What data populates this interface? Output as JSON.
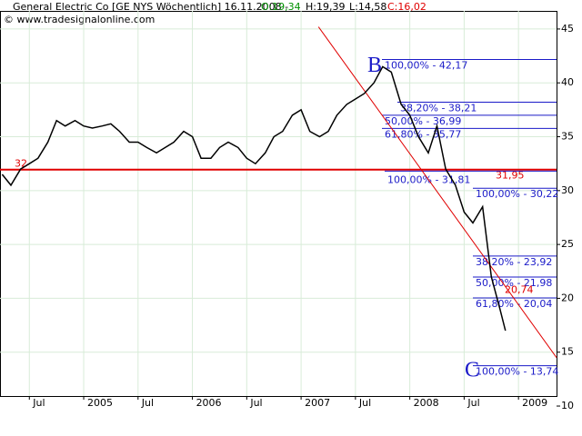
{
  "chart_data": {
    "type": "line",
    "header": {
      "title": "General Electric Co [GE NYS  Wöchentlich] 16.11.2008 -",
      "open": "O:19,34",
      "high": "H:19,39",
      "low": "L:14,58",
      "close": "C:16,02",
      "copyright": "© www.tradesignalonline.com"
    },
    "xlim": [
      2004.23,
      2009.35
    ],
    "xticks": [
      {
        "value": 2004.5,
        "label": "Jul"
      },
      {
        "value": 2005,
        "label": "2005"
      },
      {
        "value": 2005.5,
        "label": "Jul"
      },
      {
        "value": 2006,
        "label": "2006"
      },
      {
        "value": 2006.5,
        "label": "Jul"
      },
      {
        "value": 2007,
        "label": "2007"
      },
      {
        "value": 2007.5,
        "label": "Jul"
      },
      {
        "value": 2008,
        "label": "2008"
      },
      {
        "value": 2008.5,
        "label": "Jul"
      },
      {
        "value": 2009,
        "label": "2009"
      }
    ],
    "ylim": [
      10.93,
      46.68
    ],
    "yticks": [
      10,
      15,
      20,
      25,
      30,
      35,
      40,
      45
    ],
    "grid": true,
    "series": [
      {
        "color": "#000000",
        "x": [
          2004.25,
          2004.33,
          2004.42,
          2004.5,
          2004.58,
          2004.67,
          2004.75,
          2004.83,
          2004.92,
          2005.0,
          2005.08,
          2005.17,
          2005.25,
          2005.33,
          2005.42,
          2005.5,
          2005.58,
          2005.67,
          2005.75,
          2005.83,
          2005.92,
          2006.0,
          2006.08,
          2006.17,
          2006.25,
          2006.33,
          2006.42,
          2006.5,
          2006.58,
          2006.67,
          2006.75,
          2006.83,
          2006.92,
          2007.0,
          2007.08,
          2007.17,
          2007.25,
          2007.33,
          2007.42,
          2007.5,
          2007.58,
          2007.67,
          2007.75,
          2007.83,
          2007.92,
          2008.0,
          2008.08,
          2008.17,
          2008.25,
          2008.33,
          2008.42,
          2008.5,
          2008.58,
          2008.67,
          2008.75,
          2008.83,
          2008.88
        ],
        "values": [
          31.5,
          30.5,
          32,
          32.5,
          33,
          34.5,
          36.5,
          36,
          36.5,
          36,
          35.8,
          36,
          36.2,
          35.5,
          34.5,
          34.5,
          34,
          33.5,
          34,
          34.5,
          35.5,
          35,
          33,
          33,
          34,
          34.5,
          34,
          33,
          32.5,
          33.5,
          35,
          35.5,
          37,
          37.5,
          35.5,
          35,
          35.5,
          37,
          38,
          38.5,
          39,
          40,
          41.5,
          41,
          38,
          37,
          35,
          33.5,
          36,
          32,
          30.5,
          28,
          27,
          28.5,
          22,
          19,
          17
        ]
      }
    ],
    "support": {
      "value": 31.95,
      "label": "31,95",
      "left_label": "32",
      "color": "#e00000"
    },
    "trendline": {
      "x": [
        2007.16,
        2009.35
      ],
      "values": [
        45.2,
        14.5
      ],
      "color": "#e00000"
    },
    "price_label": {
      "value": 20.74,
      "label": "20,74"
    },
    "points": [
      {
        "label": "B",
        "value": 41.5
      },
      {
        "label": "C",
        "value": 13.2
      }
    ],
    "fib_levels": [
      [
        {
          "value": 42.17,
          "label": "100,00% - 42,17"
        },
        {
          "value": 38.21,
          "label": "38,20% - 38,21"
        },
        {
          "value": 36.99,
          "label": "50,00% - 36,99"
        },
        {
          "value": 35.77,
          "label": "61,80% - 35,77"
        },
        {
          "value": 31.81,
          "label": "100,00% - 31,81"
        }
      ],
      [
        {
          "value": 30.22,
          "label": "100,00% - 30,22"
        },
        {
          "value": 23.92,
          "label": "38,20% - 23,92"
        },
        {
          "value": 21.98,
          "label": "50,00% - 21,98"
        },
        {
          "value": 20.04,
          "label": "61,80% - 20,04"
        },
        {
          "value": 13.74,
          "label": "100,00% - 13,74"
        }
      ]
    ]
  }
}
